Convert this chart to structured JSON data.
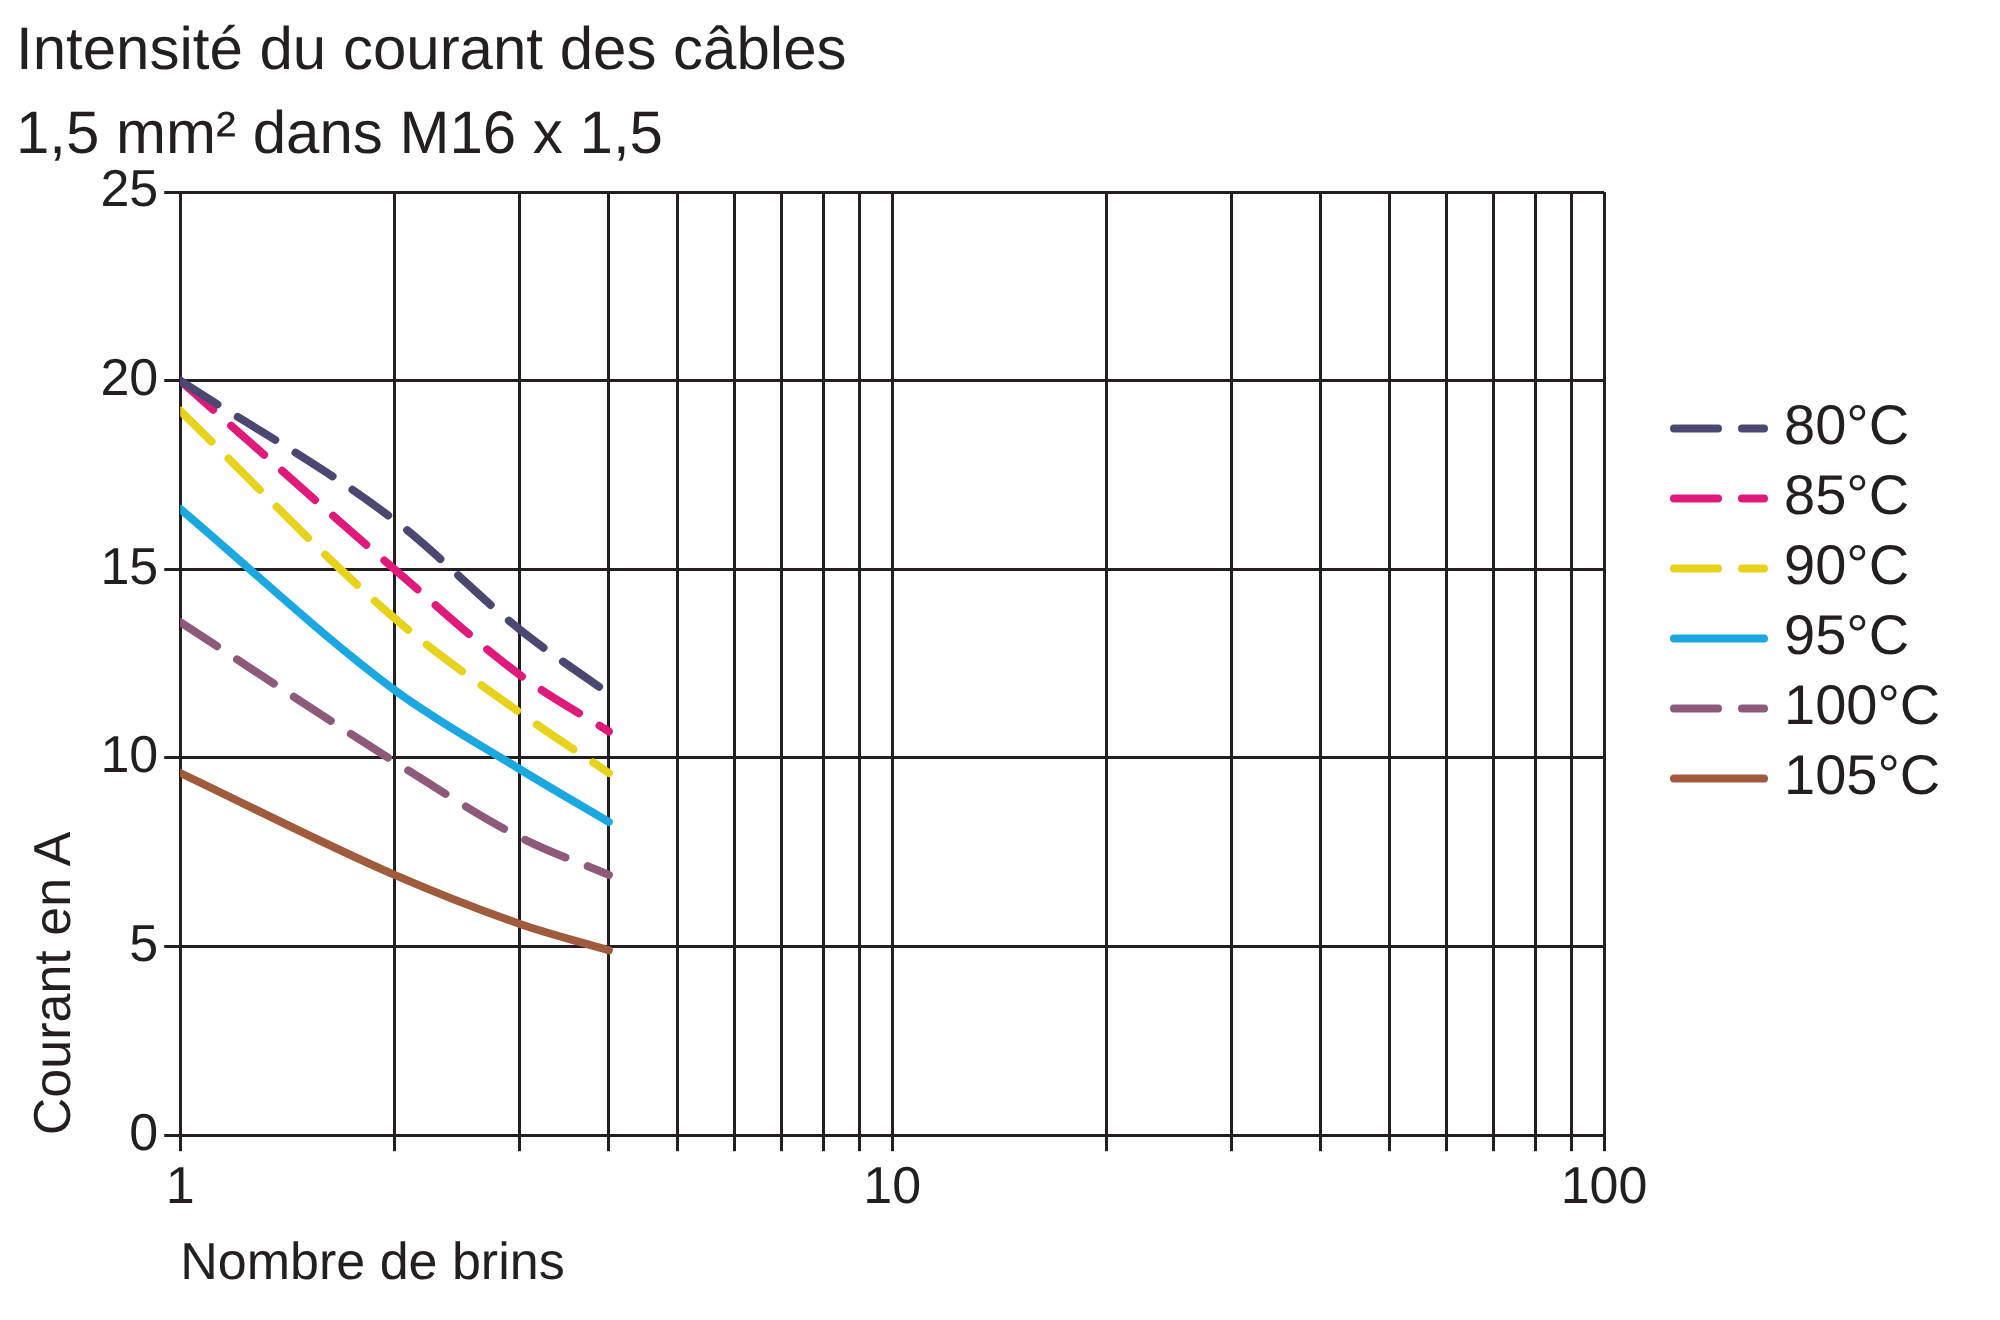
{
  "chart_data": {
    "type": "line",
    "title": "Intensité du courant des câbles",
    "subtitle": "1,5 mm² dans M16 x 1,5",
    "xlabel": "Nombre de brins",
    "ylabel": "Courant en A",
    "log": "x",
    "x": [
      1,
      2,
      3,
      4
    ],
    "series": [
      {
        "name": "80°C",
        "color": "#4a4870",
        "line_style": "dashed",
        "values": [
          20.0,
          16.3,
          13.4,
          11.7
        ]
      },
      {
        "name": "85°C",
        "color": "#e0197d",
        "line_style": "dashed",
        "values": [
          20.0,
          15.0,
          12.2,
          10.7
        ]
      },
      {
        "name": "90°C",
        "color": "#e8d21c",
        "line_style": "dashed",
        "values": [
          19.2,
          13.7,
          11.2,
          9.6
        ]
      },
      {
        "name": "95°C",
        "color": "#1ba8e0",
        "line_style": "solid",
        "values": [
          16.6,
          11.8,
          9.7,
          8.3
        ]
      },
      {
        "name": "100°C",
        "color": "#8e5a7a",
        "line_style": "dashed",
        "values": [
          13.6,
          9.9,
          7.9,
          6.9
        ]
      },
      {
        "name": "105°C",
        "color": "#a05a3c",
        "line_style": "solid",
        "values": [
          9.6,
          6.9,
          5.6,
          4.9
        ]
      }
    ],
    "xlim": [
      1,
      100
    ],
    "xticks": [
      1,
      {
        "value": 2,
        "label": null
      },
      {
        "value": 3,
        "label": null
      },
      {
        "value": 4,
        "label": null
      },
      {
        "value": 5,
        "label": null
      },
      {
        "value": 6,
        "label": null
      },
      {
        "value": 7,
        "label": null
      },
      {
        "value": 8,
        "label": null
      },
      {
        "value": 9,
        "label": null
      },
      10,
      {
        "value": 20,
        "label": null
      },
      {
        "value": 30,
        "label": null
      },
      {
        "value": 40,
        "label": null
      },
      {
        "value": 50,
        "label": null
      },
      {
        "value": 60,
        "label": null
      },
      {
        "value": 70,
        "label": null
      },
      {
        "value": 80,
        "label": null
      },
      {
        "value": 90,
        "label": null
      },
      100
    ],
    "ylim": [
      0,
      25
    ],
    "yticks": [
      0,
      5,
      10,
      15,
      20,
      25
    ],
    "grid": true,
    "legend": "right",
    "marker": "none"
  }
}
